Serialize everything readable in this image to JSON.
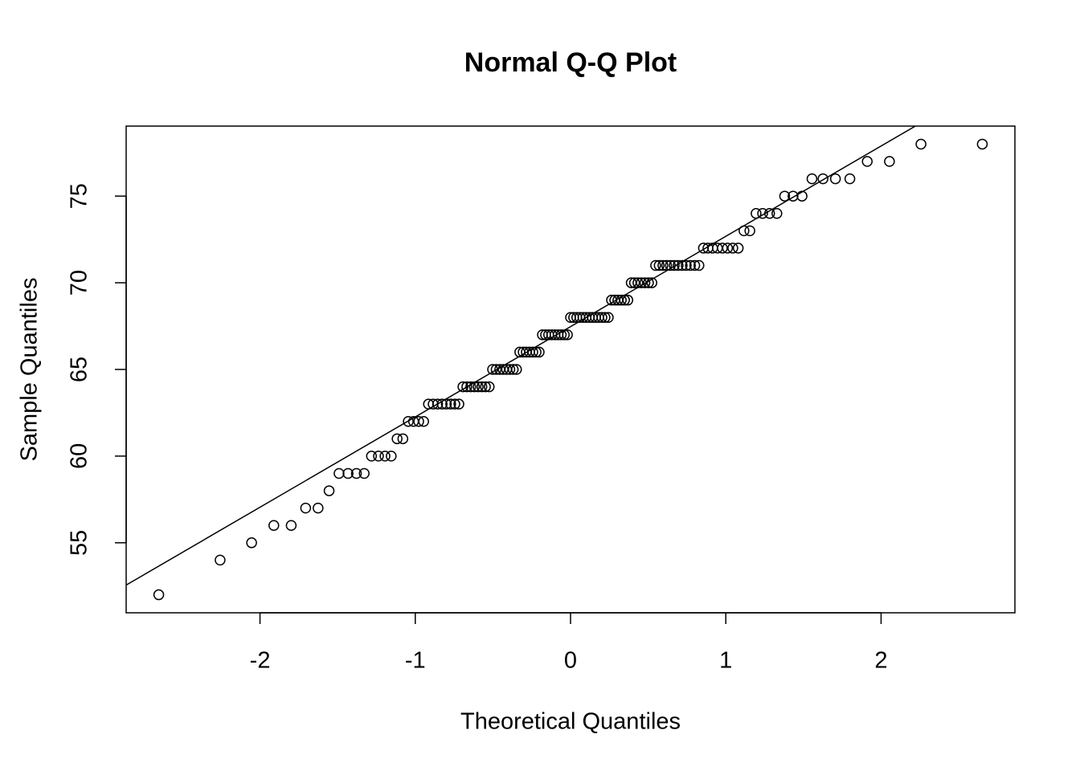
{
  "chart_data": {
    "type": "scatter",
    "title": "Normal Q-Q Plot",
    "x_label": "Theoretical Quantiles",
    "y_label": "Sample Quantiles",
    "x": [
      -2.652,
      -2.257,
      -2.054,
      -1.911,
      -1.799,
      -1.706,
      -1.626,
      -1.555,
      -1.491,
      -1.433,
      -1.379,
      -1.329,
      -1.282,
      -1.237,
      -1.195,
      -1.155,
      -1.117,
      -1.08,
      -1.045,
      -1.011,
      -0.978,
      -0.946,
      -0.915,
      -0.885,
      -0.856,
      -0.827,
      -0.8,
      -0.772,
      -0.745,
      -0.719,
      -0.693,
      -0.668,
      -0.643,
      -0.619,
      -0.595,
      -0.571,
      -0.548,
      -0.524,
      -0.502,
      -0.479,
      -0.456,
      -0.434,
      -0.412,
      -0.391,
      -0.369,
      -0.348,
      -0.327,
      -0.305,
      -0.285,
      -0.264,
      -0.243,
      -0.222,
      -0.202,
      -0.181,
      -0.161,
      -0.141,
      -0.121,
      -0.1,
      -0.08,
      -0.06,
      -0.04,
      -0.02,
      0,
      0.02,
      0.04,
      0.06,
      0.08,
      0.1,
      0.121,
      0.141,
      0.161,
      0.181,
      0.202,
      0.222,
      0.243,
      0.264,
      0.285,
      0.305,
      0.327,
      0.348,
      0.369,
      0.391,
      0.412,
      0.434,
      0.456,
      0.479,
      0.502,
      0.524,
      0.548,
      0.571,
      0.595,
      0.619,
      0.643,
      0.668,
      0.693,
      0.719,
      0.745,
      0.772,
      0.8,
      0.827,
      0.856,
      0.885,
      0.915,
      0.946,
      0.978,
      1.011,
      1.045,
      1.08,
      1.117,
      1.155,
      1.195,
      1.237,
      1.282,
      1.329,
      1.379,
      1.433,
      1.491,
      1.555,
      1.626,
      1.706,
      1.799,
      1.911,
      2.054,
      2.257,
      2.652
    ],
    "y": [
      52,
      54,
      55,
      56,
      56,
      57,
      57,
      58,
      59,
      59,
      59,
      59,
      60,
      60,
      60,
      60,
      61,
      61,
      62,
      62,
      62,
      62,
      63,
      63,
      63,
      63,
      63,
      63,
      63,
      63,
      64,
      64,
      64,
      64,
      64,
      64,
      64,
      64,
      65,
      65,
      65,
      65,
      65,
      65,
      65,
      65,
      66,
      66,
      66,
      66,
      66,
      66,
      66,
      67,
      67,
      67,
      67,
      67,
      67,
      67,
      67,
      67,
      68,
      68,
      68,
      68,
      68,
      68,
      68,
      68,
      68,
      68,
      68,
      68,
      68,
      69,
      69,
      69,
      69,
      69,
      69,
      70,
      70,
      70,
      70,
      70,
      70,
      70,
      71,
      71,
      71,
      71,
      71,
      71,
      71,
      71,
      71,
      71,
      71,
      71,
      72,
      72,
      72,
      72,
      72,
      72,
      72,
      72,
      73,
      73,
      74,
      74,
      74,
      74,
      75,
      75,
      75,
      76,
      76,
      76,
      76,
      77,
      77,
      78,
      78
    ],
    "reference_line": {
      "intercept": 67.47,
      "slope": 5.21
    },
    "color": "#000000",
    "xlim": [
      -2.862,
      2.862
    ],
    "ylim": [
      50.96,
      79.04
    ],
    "xticks": [
      -2,
      -1,
      0,
      1,
      2
    ],
    "yticks": [
      55,
      60,
      65,
      70,
      75
    ]
  }
}
